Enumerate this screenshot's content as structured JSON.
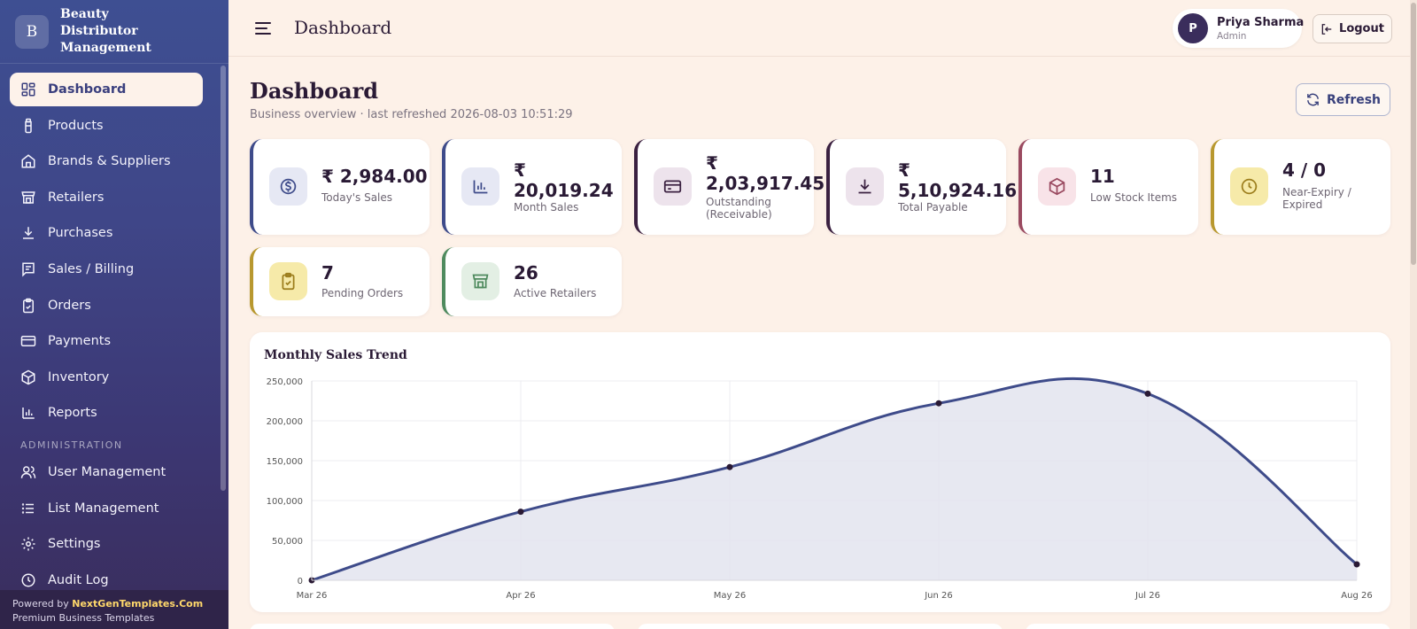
{
  "brand": {
    "logo_letter": "B",
    "name": "Beauty Distributor Management"
  },
  "nav": {
    "items": [
      {
        "label": "Dashboard",
        "icon": "dashboard-grid-icon",
        "active": true
      },
      {
        "label": "Products",
        "icon": "bottle-icon"
      },
      {
        "label": "Brands & Suppliers",
        "icon": "store-icon"
      },
      {
        "label": "Retailers",
        "icon": "shop-icon"
      },
      {
        "label": "Purchases",
        "icon": "download-icon"
      },
      {
        "label": "Sales / Billing",
        "icon": "receipt-icon"
      },
      {
        "label": "Orders",
        "icon": "clipboard-icon"
      },
      {
        "label": "Payments",
        "icon": "credit-card-icon"
      },
      {
        "label": "Inventory",
        "icon": "box-icon"
      },
      {
        "label": "Reports",
        "icon": "bar-chart-icon"
      }
    ],
    "section_label": "ADMINISTRATION",
    "admin_items": [
      {
        "label": "User Management",
        "icon": "users-icon"
      },
      {
        "label": "List Management",
        "icon": "list-icon"
      },
      {
        "label": "Settings",
        "icon": "gear-icon"
      },
      {
        "label": "Audit Log",
        "icon": "history-icon"
      }
    ]
  },
  "footer": {
    "powered_prefix": "Powered by ",
    "powered_brand": "NextGenTemplates.Com",
    "tagline": "Premium Business Templates"
  },
  "topbar": {
    "title": "Dashboard",
    "user_initial": "P",
    "user_name": "Priya Sharma",
    "user_role": "Admin",
    "logout_label": "Logout"
  },
  "page": {
    "title": "Dashboard",
    "subtitle": "Business overview · last refreshed 2026-08-03 10:51:29",
    "refresh_label": "Refresh"
  },
  "stats": [
    {
      "value": "₹ 2,984.00",
      "label": "Today's Sales",
      "icon": "rupee-coin-icon",
      "accent": "#3e4b8a"
    },
    {
      "value": "₹ 20,019.24",
      "label": "Month Sales",
      "icon": "bar-chart-icon",
      "accent": "#3e4b8a"
    },
    {
      "value": "₹ 2,03,917.45",
      "label": "Outstanding (Receivable)",
      "icon": "credit-card-icon",
      "accent": "#3a2040"
    },
    {
      "value": "₹ 5,10,924.16",
      "label": "Total Payable",
      "icon": "download-icon",
      "accent": "#3a2040"
    },
    {
      "value": "11",
      "label": "Low Stock Items",
      "icon": "box-icon",
      "accent": "#9a4a60"
    },
    {
      "value": "4 / 0",
      "label": "Near-Expiry / Expired",
      "icon": "clock-icon",
      "accent": "#b8982f"
    },
    {
      "value": "7",
      "label": "Pending Orders",
      "icon": "clipboard-check-icon",
      "accent": "#b8982f"
    },
    {
      "value": "26",
      "label": "Active Retailers",
      "icon": "shop-icon",
      "accent": "#4f8a5e"
    }
  ],
  "chart_title": "Monthly Sales Trend",
  "chart_data": {
    "type": "area",
    "title": "Monthly Sales Trend",
    "categories": [
      "Mar 26",
      "Apr 26",
      "May 26",
      "Jun 26",
      "Jul 26",
      "Aug 26"
    ],
    "series": [
      {
        "values": [
          0,
          86000,
          142000,
          222000,
          234000,
          20000
        ]
      }
    ],
    "ylim": [
      0,
      250000
    ],
    "yticks": [
      "0",
      "50,000",
      "100,000",
      "150,000",
      "200,000",
      "250,000"
    ],
    "line_color": "#3e4b8a",
    "fill_color": "#e3e4ef",
    "grid": true
  }
}
